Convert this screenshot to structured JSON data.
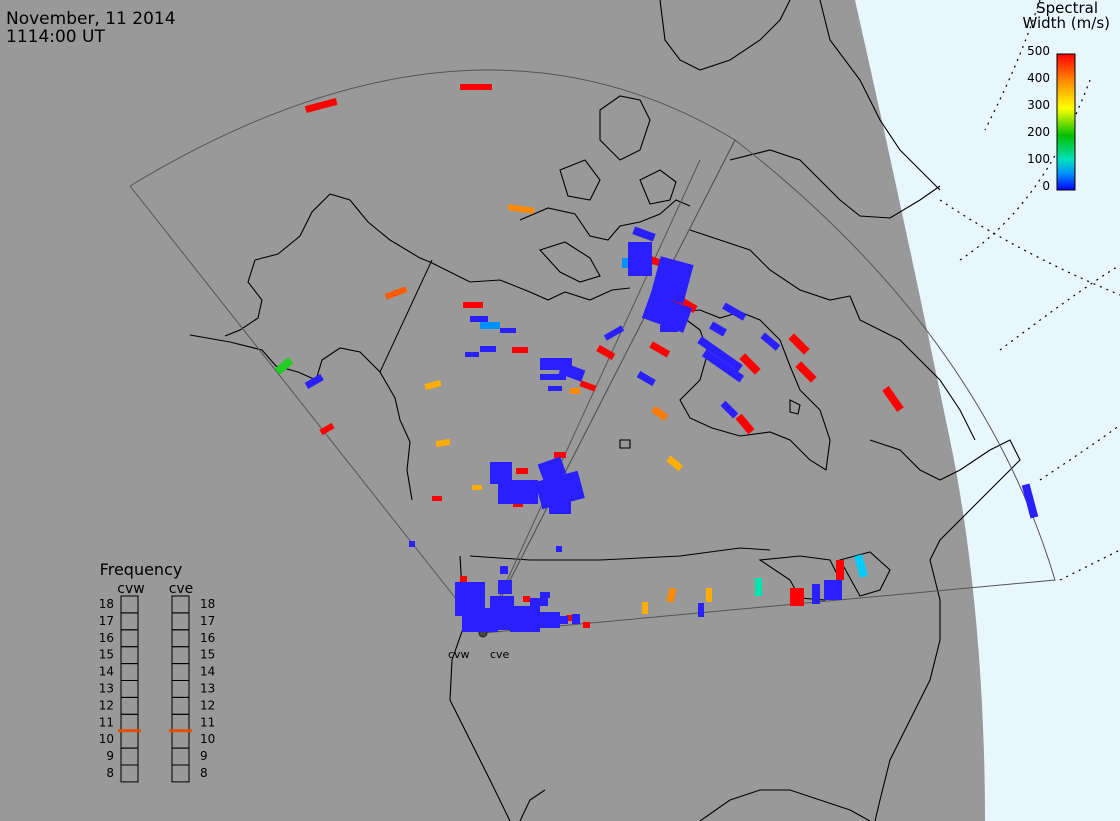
{
  "header": {
    "date": "November, 11 2014",
    "time": "1114:00 UT"
  },
  "legend": {
    "title_line1": "Spectral",
    "title_line2": "Width (m/s)",
    "ticks": [
      "500",
      "400",
      "300",
      "200",
      "100",
      "0"
    ],
    "ramp_colors": [
      "#ff0000",
      "#ff8c00",
      "#ffff00",
      "#00c000",
      "#00e0c0",
      "#0090ff",
      "#0000ff"
    ]
  },
  "frequency_panel": {
    "title": "Frequency",
    "channels": [
      {
        "name": "cvw",
        "selected": "11"
      },
      {
        "name": "cve",
        "selected": "11"
      }
    ],
    "scale": [
      "18",
      "17",
      "16",
      "15",
      "14",
      "13",
      "12",
      "11",
      "10",
      "9",
      "8"
    ],
    "marker_color": "#e05000"
  },
  "radars": [
    {
      "name": "cvw"
    },
    {
      "name": "cve"
    }
  ],
  "colors": {
    "land": "#999999",
    "space": "#e8f6fd",
    "coast": "#000000",
    "fov": "#555555",
    "red": "#ff0000",
    "orange": "#ff8a00",
    "yellow_orange": "#ffae00",
    "yellow": "#e6f000",
    "green": "#22cc22",
    "cyan": "#00e5b0",
    "sky": "#00aaff",
    "blue": "#2a1fff"
  }
}
